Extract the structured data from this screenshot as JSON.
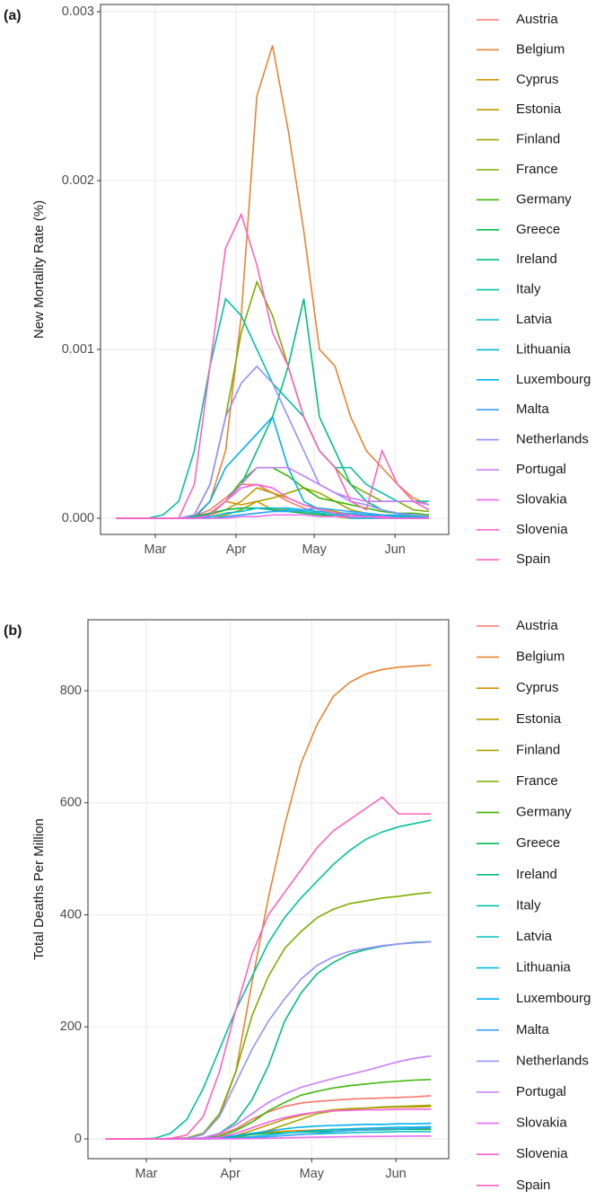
{
  "chart_data": [
    {
      "type": "line",
      "panel_label": "(a)",
      "y_label": "New Mortality Rate (%)",
      "x": [
        46,
        52,
        58,
        64,
        70,
        76,
        82,
        88,
        94,
        100,
        106,
        112,
        118,
        124,
        130,
        136,
        142,
        148,
        154,
        160,
        166
      ],
      "xlim": [
        40,
        173.6
      ],
      "xticks": [
        {
          "value": 61,
          "label": "Mar"
        },
        {
          "value": 92,
          "label": "Apr"
        },
        {
          "value": 122,
          "label": "May"
        },
        {
          "value": 153,
          "label": "Jun"
        }
      ],
      "ylim": [
        -9.57e-05,
        0.003043
      ],
      "yticks": [
        {
          "value": 0,
          "label": "0.000"
        },
        0.001,
        0.002,
        0.003
      ],
      "grid": true,
      "series": [
        {
          "name": "Austria",
          "color": "#F8766D",
          "values": [
            0,
            0,
            0,
            0,
            0,
            1e-05,
            5e-05,
            0.00012,
            0.0002,
            0.0002,
            0.00015,
            0.0001,
            6e-05,
            3e-05,
            2e-05,
            1e-05,
            1e-05,
            1e-05,
            1e-05,
            1e-05,
            1e-05
          ]
        },
        {
          "name": "Belgium",
          "color": "#EA8331",
          "values": [
            0,
            0,
            0,
            0,
            0,
            1e-05,
            0.0001,
            0.0004,
            0.0012,
            0.0025,
            0.0028,
            0.0023,
            0.0017,
            0.001,
            0.0009,
            0.0006,
            0.0004,
            0.0003,
            0.0002,
            0.00012,
            8e-05
          ]
        },
        {
          "name": "Cyprus",
          "color": "#D89000",
          "values": [
            0,
            0,
            0,
            0,
            0,
            0,
            3e-05,
            0.0001,
            8e-05,
            0.0001,
            5e-05,
            5e-05,
            3e-05,
            2e-05,
            1e-05,
            0,
            0,
            0,
            0,
            0,
            0
          ]
        },
        {
          "name": "Estonia",
          "color": "#C09B00",
          "values": [
            0,
            0,
            0,
            0,
            0,
            0,
            2e-05,
            5e-05,
            0.0001,
            0.00018,
            0.00015,
            0.00012,
            8e-05,
            6e-05,
            4e-05,
            2e-05,
            1e-05,
            1e-05,
            0,
            0,
            0
          ]
        },
        {
          "name": "Finland",
          "color": "#A3A500",
          "values": [
            0,
            0,
            0,
            0,
            0,
            0,
            0,
            2e-05,
            5e-05,
            0.0001,
            0.00012,
            0.00015,
            0.00018,
            0.00015,
            0.0001,
            5e-05,
            3e-05,
            2e-05,
            2e-05,
            1e-05,
            1e-05
          ]
        },
        {
          "name": "France",
          "color": "#7CAE00",
          "values": [
            0,
            0,
            0,
            0,
            0,
            2e-05,
            0.0002,
            0.0006,
            0.0011,
            0.0014,
            0.0012,
            0.0009,
            0.0006,
            0.0004,
            0.0003,
            0.0002,
            0.00015,
            0.0001,
            0.0001,
            5e-05,
            4e-05
          ]
        },
        {
          "name": "Germany",
          "color": "#39B600",
          "values": [
            0,
            0,
            0,
            0,
            0,
            0,
            2e-05,
            0.0001,
            0.00022,
            0.0003,
            0.0003,
            0.00025,
            0.00018,
            0.00012,
            0.0001,
            8e-05,
            6e-05,
            4e-05,
            3e-05,
            3e-05,
            2e-05
          ]
        },
        {
          "name": "Greece",
          "color": "#00BB4E",
          "values": [
            0,
            0,
            0,
            0,
            0,
            1e-05,
            3e-05,
            5e-05,
            6e-05,
            6e-05,
            5e-05,
            4e-05,
            3e-05,
            2e-05,
            2e-05,
            2e-05,
            1e-05,
            1e-05,
            1e-05,
            1e-05,
            1e-05
          ]
        },
        {
          "name": "Ireland",
          "color": "#00BF7D",
          "values": [
            0,
            0,
            0,
            0,
            0,
            0,
            2e-05,
            0.0001,
            0.0002,
            0.0004,
            0.0006,
            0.0009,
            0.0013,
            0.0006,
            0.0004,
            0.0002,
            0.0001,
            5e-05,
            3e-05,
            2e-05,
            1e-05
          ]
        },
        {
          "name": "Italy",
          "color": "#00C1A3",
          "values": [
            0,
            0,
            0,
            2e-05,
            0.0001,
            0.0004,
            0.0009,
            0.0013,
            0.0012,
            0.001,
            0.0008,
            0.0007,
            0.0006,
            0.0004,
            0.0003,
            0.0003,
            0.0002,
            0.00015,
            0.0001,
            0.0001,
            0.0001
          ]
        },
        {
          "name": "Latvia",
          "color": "#00BFC4",
          "values": [
            0,
            0,
            0,
            0,
            0,
            0,
            0,
            1e-05,
            2e-05,
            3e-05,
            4e-05,
            5e-05,
            4e-05,
            3e-05,
            2e-05,
            2e-05,
            2e-05,
            1e-05,
            1e-05,
            0,
            0
          ]
        },
        {
          "name": "Lithuania",
          "color": "#00BAE0",
          "values": [
            0,
            0,
            0,
            0,
            0,
            0,
            1e-05,
            3e-05,
            4e-05,
            6e-05,
            6e-05,
            6e-05,
            5e-05,
            4e-05,
            3e-05,
            3e-05,
            2e-05,
            2e-05,
            1e-05,
            1e-05,
            1e-05
          ]
        },
        {
          "name": "Luxembourg",
          "color": "#00B0F6",
          "values": [
            0,
            0,
            0,
            0,
            0,
            0,
            0.0001,
            0.0003,
            0.0004,
            0.0005,
            0.0006,
            0.0003,
            0.0001,
            5e-05,
            3e-05,
            0,
            0,
            0,
            0,
            0,
            0
          ]
        },
        {
          "name": "Malta",
          "color": "#35A2FF",
          "values": [
            0,
            0,
            0,
            0,
            0,
            0,
            0,
            1e-05,
            2e-05,
            3e-05,
            4e-05,
            4e-05,
            5e-05,
            6e-05,
            5e-05,
            4e-05,
            3e-05,
            2e-05,
            2e-05,
            2e-05,
            1e-05
          ]
        },
        {
          "name": "Netherlands",
          "color": "#9590FF",
          "values": [
            0,
            0,
            0,
            0,
            0,
            2e-05,
            0.0002,
            0.0006,
            0.0008,
            0.0009,
            0.0008,
            0.0006,
            0.0004,
            0.0002,
            0.00015,
            0.0001,
            8e-05,
            5e-05,
            3e-05,
            2e-05,
            1e-05
          ]
        },
        {
          "name": "Portugal",
          "color": "#C77CFF",
          "values": [
            0,
            0,
            0,
            0,
            0,
            0,
            2e-05,
            0.0001,
            0.0002,
            0.0003,
            0.0003,
            0.0003,
            0.00025,
            0.0002,
            0.00015,
            0.00012,
            0.0001,
            0.0001,
            0.0001,
            0.0001,
            8e-05
          ]
        },
        {
          "name": "Slovakia",
          "color": "#E76BF3",
          "values": [
            0,
            0,
            0,
            0,
            0,
            0,
            0,
            0,
            1e-05,
            1e-05,
            2e-05,
            2e-05,
            2e-05,
            1e-05,
            1e-05,
            1e-05,
            1e-05,
            0,
            0,
            0,
            0
          ]
        },
        {
          "name": "Slovenia",
          "color": "#FA62DB",
          "values": [
            0,
            0,
            0,
            0,
            0,
            0,
            2e-05,
            0.0001,
            0.00018,
            0.0002,
            0.00018,
            0.00012,
            8e-05,
            5e-05,
            3e-05,
            2e-05,
            1e-05,
            1e-05,
            0,
            0,
            0
          ]
        },
        {
          "name": "Spain",
          "color": "#FF62BC",
          "values": [
            0,
            0,
            0,
            0,
            0,
            0.0002,
            0.0009,
            0.0016,
            0.0018,
            0.0015,
            0.0011,
            0.0009,
            0.0006,
            0.0004,
            0.0003,
            0.0001,
            5e-05,
            0.0004,
            0.0002,
            0.0001,
            5e-05
          ]
        }
      ]
    },
    {
      "type": "line",
      "panel_label": "(b)",
      "y_label": "Total Deaths Per Million",
      "x": [
        46,
        52,
        58,
        64,
        70,
        76,
        82,
        88,
        94,
        100,
        106,
        112,
        118,
        124,
        130,
        136,
        142,
        148,
        154,
        160,
        166
      ],
      "xlim": [
        39.5,
        172.5
      ],
      "xticks": [
        {
          "value": 61,
          "label": "Mar"
        },
        {
          "value": 92,
          "label": "Apr"
        },
        {
          "value": 122,
          "label": "May"
        },
        {
          "value": 153,
          "label": "Jun"
        }
      ],
      "ylim": [
        -35.3,
        926.7
      ],
      "yticks": [
        0,
        200,
        400,
        600,
        800
      ],
      "grid": true,
      "series": [
        {
          "name": "Austria",
          "color": "#F8766D",
          "values": [
            0,
            0,
            0,
            0,
            0,
            0.1,
            2,
            8,
            18,
            35,
            48,
            58,
            64,
            67,
            69,
            71,
            72,
            73,
            74,
            75,
            77
          ]
        },
        {
          "name": "Belgium",
          "color": "#EA8331",
          "values": [
            0,
            0,
            0,
            0,
            0,
            0.5,
            8,
            40,
            120,
            280,
            430,
            560,
            670,
            740,
            790,
            815,
            830,
            838,
            842,
            844,
            846
          ]
        },
        {
          "name": "Cyprus",
          "color": "#D89000",
          "values": [
            0,
            0,
            0,
            0,
            0,
            0,
            1,
            3,
            6,
            9,
            12,
            14,
            15,
            16,
            17,
            17,
            17,
            18,
            18,
            18,
            18
          ]
        },
        {
          "name": "Estonia",
          "color": "#C09B00",
          "values": [
            0,
            0,
            0,
            0,
            0,
            0,
            0.5,
            2,
            6,
            15,
            25,
            35,
            42,
            48,
            52,
            54,
            55,
            56,
            57,
            57,
            58
          ]
        },
        {
          "name": "Finland",
          "color": "#A3A500",
          "values": [
            0,
            0,
            0,
            0,
            0,
            0,
            0.2,
            1,
            3,
            8,
            15,
            25,
            35,
            45,
            50,
            53,
            55,
            57,
            58,
            59,
            60
          ]
        },
        {
          "name": "France",
          "color": "#7CAE00",
          "values": [
            0,
            0,
            0,
            0,
            0.5,
            2,
            10,
            45,
            120,
            220,
            290,
            340,
            370,
            395,
            410,
            420,
            425,
            430,
            433,
            437,
            440
          ]
        },
        {
          "name": "Germany",
          "color": "#39B600",
          "values": [
            0,
            0,
            0,
            0,
            0,
            0.1,
            1,
            5,
            15,
            30,
            50,
            65,
            78,
            85,
            91,
            95,
            98,
            101,
            103,
            105,
            106
          ]
        },
        {
          "name": "Greece",
          "color": "#00BB4E",
          "values": [
            0,
            0,
            0,
            0,
            0,
            0.1,
            1,
            3,
            5,
            8,
            10,
            11,
            12,
            13,
            14,
            15,
            16,
            16,
            17,
            17,
            17
          ]
        },
        {
          "name": "Ireland",
          "color": "#00BF7D",
          "values": [
            0,
            0,
            0,
            0,
            0,
            0.2,
            2,
            10,
            30,
            70,
            130,
            210,
            260,
            295,
            315,
            330,
            338,
            344,
            348,
            351,
            352
          ]
        },
        {
          "name": "Italy",
          "color": "#00C1A3",
          "values": [
            0,
            0,
            0.1,
            1,
            10,
            35,
            90,
            160,
            230,
            290,
            350,
            395,
            430,
            460,
            490,
            515,
            535,
            548,
            557,
            563,
            569
          ]
        },
        {
          "name": "Latvia",
          "color": "#00BFC4",
          "values": [
            0,
            0,
            0,
            0,
            0,
            0,
            0,
            0.5,
            1,
            2,
            4,
            6,
            8,
            9,
            10,
            11,
            12,
            12,
            13,
            13,
            13
          ]
        },
        {
          "name": "Lithuania",
          "color": "#00BAE0",
          "values": [
            0,
            0,
            0,
            0,
            0,
            0,
            0.2,
            1,
            2,
            4,
            7,
            10,
            13,
            15,
            17,
            18,
            19,
            20,
            21,
            21,
            22
          ]
        },
        {
          "name": "Luxembourg",
          "color": "#00B0F6",
          "values": [
            0,
            0,
            0,
            0,
            0,
            0,
            1,
            3,
            6,
            10,
            14,
            18,
            21,
            23,
            24,
            25,
            26,
            26,
            27,
            27,
            28
          ]
        },
        {
          "name": "Malta",
          "color": "#35A2FF",
          "values": [
            0,
            0,
            0,
            0,
            0,
            0,
            0,
            0.5,
            1,
            2,
            4,
            6,
            8,
            10,
            13,
            15,
            16,
            17,
            18,
            19,
            20
          ]
        },
        {
          "name": "Netherlands",
          "color": "#9590FF",
          "values": [
            0,
            0,
            0,
            0,
            0,
            1,
            8,
            40,
            100,
            160,
            210,
            250,
            285,
            310,
            325,
            335,
            340,
            345,
            348,
            350,
            352
          ]
        },
        {
          "name": "Portugal",
          "color": "#C77CFF",
          "values": [
            0,
            0,
            0,
            0,
            0,
            0.2,
            2,
            10,
            25,
            45,
            65,
            80,
            92,
            100,
            108,
            115,
            122,
            130,
            138,
            144,
            148
          ]
        },
        {
          "name": "Slovakia",
          "color": "#E76BF3",
          "values": [
            0,
            0,
            0,
            0,
            0,
            0,
            0,
            0.1,
            0.3,
            0.6,
            1,
            1.8,
            2.5,
            3,
            3.5,
            4,
            4.3,
            4.5,
            4.8,
            5,
            5
          ]
        },
        {
          "name": "Slovenia",
          "color": "#FA62DB",
          "values": [
            0,
            0,
            0,
            0,
            0,
            0,
            0.5,
            3,
            10,
            20,
            30,
            38,
            44,
            48,
            50,
            51,
            52,
            52,
            53,
            53,
            53
          ]
        },
        {
          "name": "Spain",
          "color": "#FF62BC",
          "values": [
            0,
            0,
            0,
            0.1,
            1,
            7,
            40,
            120,
            230,
            330,
            400,
            440,
            480,
            520,
            550,
            570,
            590,
            610,
            580,
            580,
            580
          ]
        }
      ]
    }
  ]
}
